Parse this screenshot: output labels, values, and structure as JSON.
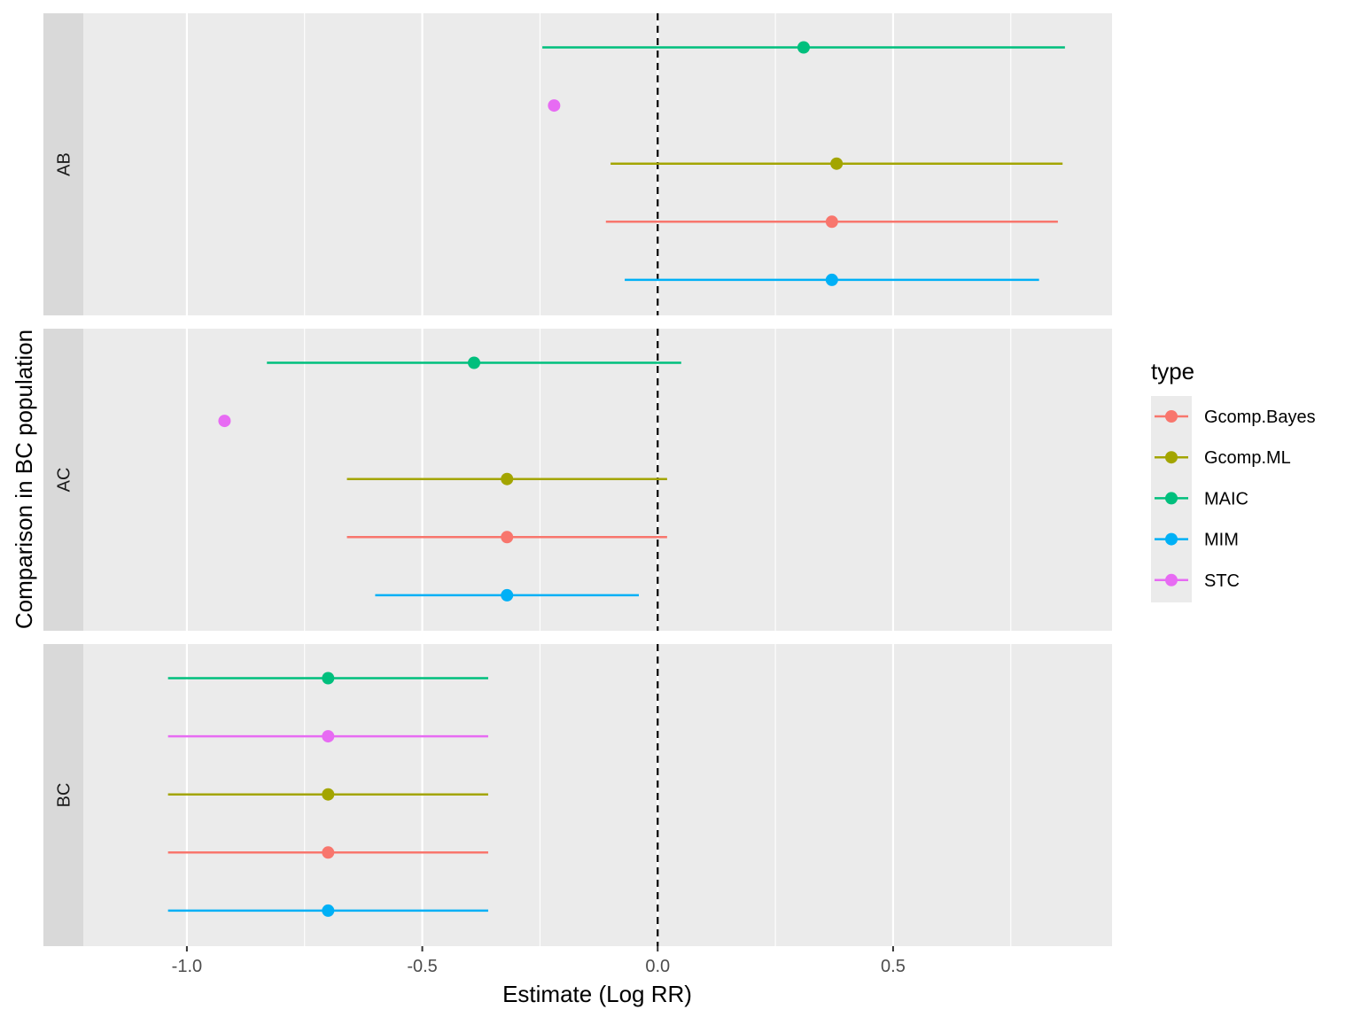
{
  "chart_data": {
    "type": "forest",
    "xlabel": "Estimate (Log RR)",
    "ylabel": "Comparison in BC population",
    "xlim": [
      -1.22,
      0.965
    ],
    "x_ticks": [
      -1.0,
      -0.5,
      0.0,
      0.5
    ],
    "x_tick_labels": [
      "-1.0",
      "-0.5",
      "0.0",
      "0.5"
    ],
    "reference_line": 0,
    "grid": true,
    "legend": {
      "title": "type",
      "position": "right",
      "entries": [
        {
          "name": "Gcomp.Bayes",
          "color": "#F8766D"
        },
        {
          "name": "Gcomp.ML",
          "color": "#A3A500"
        },
        {
          "name": "MAIC",
          "color": "#00BF7D"
        },
        {
          "name": "MIM",
          "color": "#00B0F6"
        },
        {
          "name": "STC",
          "color": "#E76BF3"
        }
      ]
    },
    "facets": [
      {
        "label": "AB",
        "rows": [
          {
            "type": "MAIC",
            "estimate": 0.31,
            "lower": -0.245,
            "upper": 0.865
          },
          {
            "type": "STC",
            "estimate": -0.22,
            "lower": null,
            "upper": null
          },
          {
            "type": "Gcomp.ML",
            "estimate": 0.38,
            "lower": -0.1,
            "upper": 0.86
          },
          {
            "type": "Gcomp.Bayes",
            "estimate": 0.37,
            "lower": -0.11,
            "upper": 0.85
          },
          {
            "type": "MIM",
            "estimate": 0.37,
            "lower": -0.07,
            "upper": 0.81
          }
        ]
      },
      {
        "label": "AC",
        "rows": [
          {
            "type": "MAIC",
            "estimate": -0.39,
            "lower": -0.83,
            "upper": 0.05
          },
          {
            "type": "STC",
            "estimate": -0.92,
            "lower": null,
            "upper": null
          },
          {
            "type": "Gcomp.ML",
            "estimate": -0.32,
            "lower": -0.66,
            "upper": 0.02
          },
          {
            "type": "Gcomp.Bayes",
            "estimate": -0.32,
            "lower": -0.66,
            "upper": 0.02
          },
          {
            "type": "MIM",
            "estimate": -0.32,
            "lower": -0.6,
            "upper": -0.04
          }
        ]
      },
      {
        "label": "BC",
        "rows": [
          {
            "type": "MAIC",
            "estimate": -0.7,
            "lower": -1.04,
            "upper": -0.36
          },
          {
            "type": "STC",
            "estimate": -0.7,
            "lower": -1.04,
            "upper": -0.36
          },
          {
            "type": "Gcomp.ML",
            "estimate": -0.7,
            "lower": -1.04,
            "upper": -0.36
          },
          {
            "type": "Gcomp.Bayes",
            "estimate": -0.7,
            "lower": -1.04,
            "upper": -0.36
          },
          {
            "type": "MIM",
            "estimate": -0.7,
            "lower": -1.04,
            "upper": -0.36
          }
        ]
      }
    ]
  }
}
